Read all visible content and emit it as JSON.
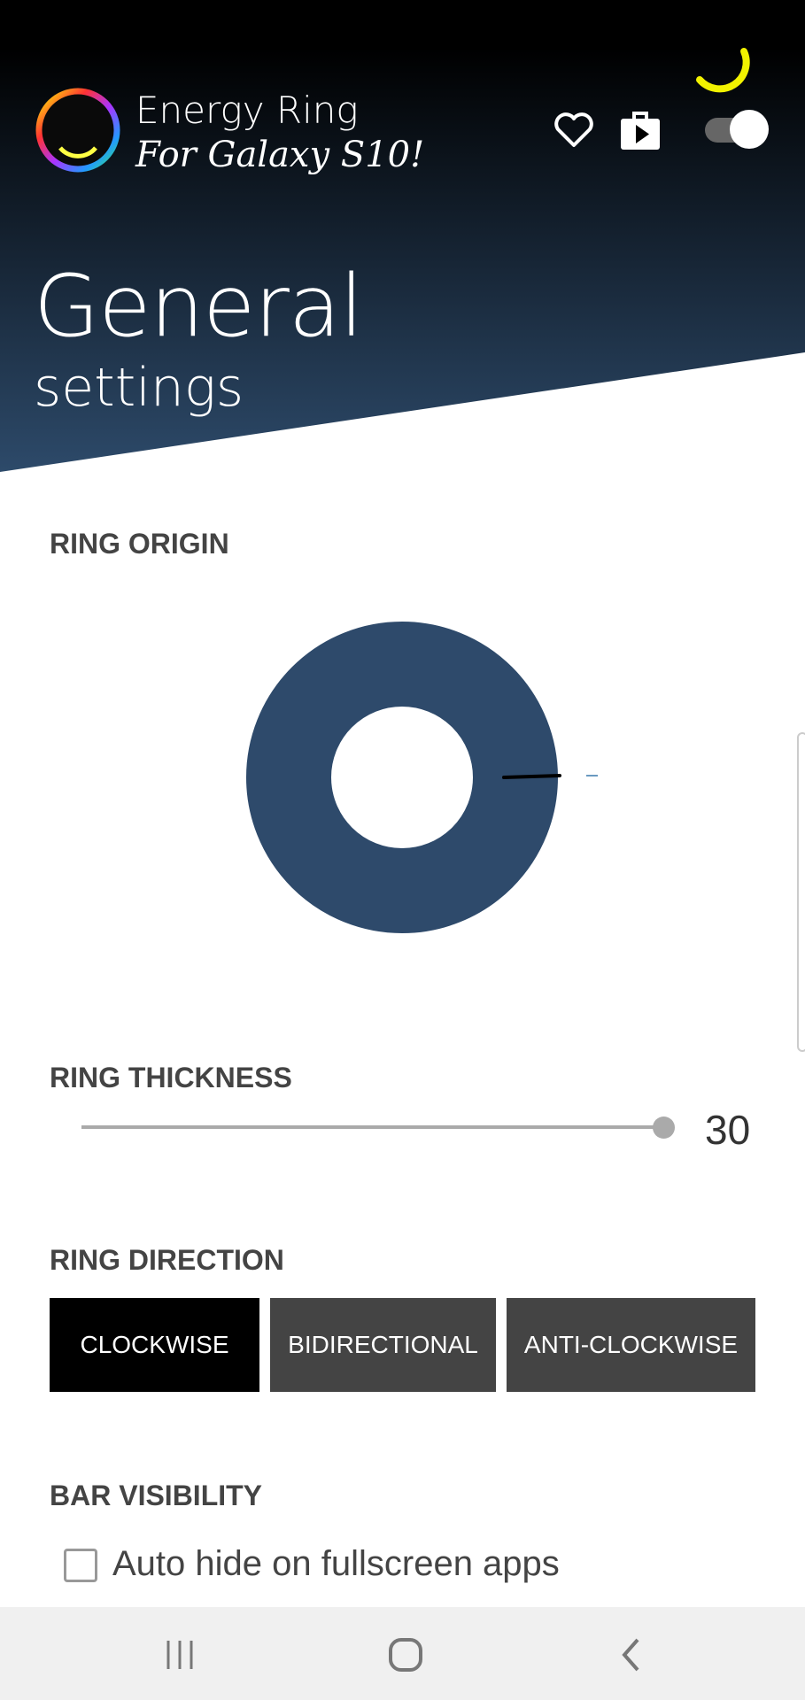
{
  "app": {
    "title": "Energy Ring",
    "subtitle": "For Galaxy S10!"
  },
  "header": {
    "title": "General",
    "subtitle": "settings",
    "icons": [
      "heart-icon",
      "play-store-icon",
      "toggle-switch"
    ],
    "toggle_on": true
  },
  "colors": {
    "ring": "#2e4a6b",
    "selected_button": "#000000",
    "button": "#444444",
    "accent_arc": "#f2f200"
  },
  "ring_origin": {
    "label": "RING ORIGIN"
  },
  "ring_thickness": {
    "label": "RING THICKNESS",
    "value": "30",
    "fraction": 1.0
  },
  "ring_direction": {
    "label": "RING DIRECTION",
    "options": [
      "CLOCKWISE",
      "BIDIRECTIONAL",
      "ANTI-CLOCKWISE"
    ],
    "selected": "CLOCKWISE"
  },
  "bar_visibility": {
    "label": "BAR VISIBILITY",
    "auto_hide_label": "Auto hide on fullscreen apps",
    "auto_hide_checked": false
  },
  "navbar": {
    "icons": [
      "recent-apps-icon",
      "home-icon",
      "back-icon"
    ]
  }
}
